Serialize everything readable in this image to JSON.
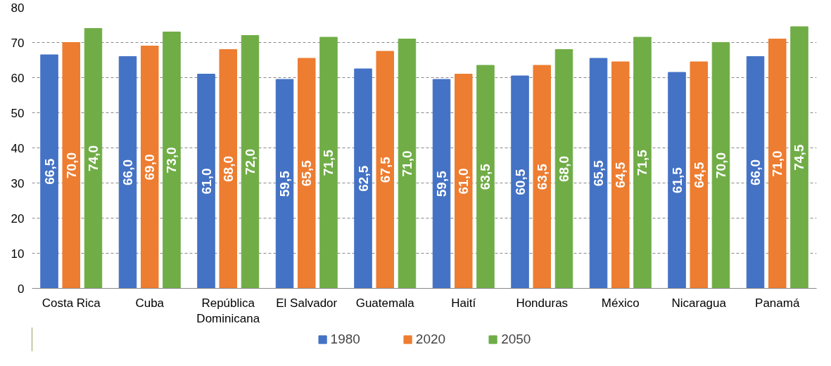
{
  "chart_data": {
    "type": "bar",
    "categories": [
      "Costa Rica",
      "Cuba",
      "República\nDominicana",
      "El Salvador",
      "Guatemala",
      "Haití",
      "Honduras",
      "México",
      "Nicaragua",
      "Panamá"
    ],
    "series": [
      {
        "name": "1980",
        "color": "#4472c4",
        "values": [
          66.5,
          66.0,
          61.0,
          59.5,
          62.5,
          59.5,
          60.5,
          65.5,
          61.5,
          66.0
        ],
        "value_labels": [
          "66,5",
          "66,0",
          "61,0",
          "59,5",
          "62,5",
          "59,5",
          "60,5",
          "65,5",
          "61,5",
          "66,0"
        ]
      },
      {
        "name": "2020",
        "color": "#ed7d31",
        "values": [
          70.0,
          69.0,
          68.0,
          65.5,
          67.5,
          61.0,
          63.5,
          64.5,
          64.5,
          71.0
        ],
        "value_labels": [
          "70,0",
          "69,0",
          "68,0",
          "65,5",
          "67,5",
          "61,0",
          "63,5",
          "64,5",
          "64,5",
          "71,0"
        ]
      },
      {
        "name": "2050",
        "color": "#70ad47",
        "values": [
          74.0,
          73.0,
          72.0,
          71.5,
          71.0,
          63.5,
          68.0,
          71.5,
          70.0,
          74.5
        ],
        "value_labels": [
          "74,0",
          "73,0",
          "72,0",
          "71,5",
          "71,0",
          "63,5",
          "68,0",
          "71,5",
          "70,0",
          "74,5"
        ]
      }
    ],
    "ylim": [
      0,
      80
    ],
    "yticks": [
      0,
      10,
      20,
      30,
      40,
      50,
      60,
      70,
      80
    ],
    "grid": "y",
    "legend": "bottom"
  }
}
